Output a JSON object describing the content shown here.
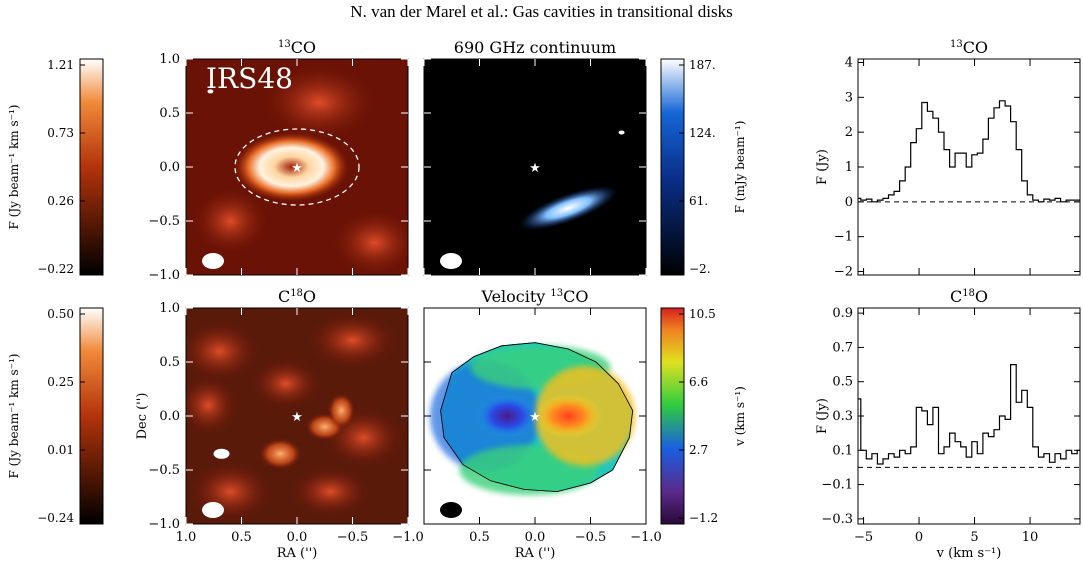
{
  "header": "N. van der Marel et al.: Gas cavities in transitional disks",
  "source_label": "IRS48",
  "colors": {
    "co_low": "#000000",
    "co_mid": "#b3330a",
    "co_high": "#ffffff",
    "cont_low": "#000000",
    "cont_mid": "#1466d6",
    "cont_high": "#ffffff",
    "vel_low": "#5a2a8a",
    "vel_mid": "#2ecc40",
    "vel_high": "#d62020"
  },
  "chart_data": [
    {
      "id": "colorbar-13co",
      "type": "colorbar",
      "ylabel": "F (Jy beam⁻¹ km s⁻¹)",
      "ticks": [
        "1.21",
        "0.73",
        "0.26",
        "-0.22"
      ],
      "range": [
        -0.22,
        1.21
      ]
    },
    {
      "id": "map-13co",
      "type": "heatmap",
      "title_pre": "13",
      "title_main": "CO",
      "xlim": [
        1.0,
        -1.0
      ],
      "ylim": [
        -1.0,
        1.0
      ],
      "yticks": [
        "1.0",
        "0.5",
        "0.0",
        "-0.5",
        "-1.0"
      ],
      "xticks": [],
      "annotations": {
        "star": [
          0.0,
          0.0
        ],
        "dashed_ellipse": true,
        "beam": true
      }
    },
    {
      "id": "map-cont",
      "type": "heatmap",
      "title": "690 GHz continuum",
      "xlim": [
        1.0,
        -1.0
      ],
      "ylim": [
        -1.0,
        1.0
      ],
      "annotations": {
        "star": [
          0.0,
          0.0
        ],
        "beam": true
      }
    },
    {
      "id": "colorbar-cont",
      "type": "colorbar",
      "ylabel": "F (mJy beam⁻¹)",
      "ticks": [
        "187.",
        "124.",
        "61.",
        "-2."
      ],
      "range": [
        -2,
        187
      ]
    },
    {
      "id": "spec-13co",
      "type": "line",
      "title_pre": "13",
      "title_main": "CO",
      "ylabel": "F (Jy)",
      "yticks": [
        "4",
        "3",
        "2",
        "1",
        "0",
        "-1",
        "-2"
      ],
      "ylim": [
        -2.1,
        4.1
      ],
      "xlim": [
        -5.5,
        14.5
      ],
      "x": [
        -5.5,
        -5,
        -4.5,
        -4,
        -3.5,
        -3,
        -2.5,
        -2,
        -1.5,
        -1,
        -0.5,
        0,
        0.5,
        1,
        1.5,
        2,
        2.5,
        3,
        3.5,
        4,
        4.5,
        5,
        5.5,
        6,
        6.5,
        7,
        7.5,
        8,
        8.5,
        9,
        9.5,
        10,
        10.5,
        11,
        11.5,
        12,
        12.5,
        13,
        13.5,
        14,
        14.5
      ],
      "y": [
        0.1,
        0.05,
        0.08,
        0.0,
        0.05,
        0.1,
        0.2,
        0.3,
        0.6,
        1.0,
        1.7,
        2.1,
        2.85,
        2.6,
        2.4,
        2.0,
        1.5,
        1.0,
        1.4,
        1.4,
        1.0,
        1.35,
        1.4,
        1.8,
        2.4,
        2.7,
        2.9,
        2.75,
        2.3,
        1.5,
        0.6,
        0.2,
        0.05,
        0.0,
        0.08,
        0.05,
        0.1,
        0.0,
        0.05,
        0.05,
        0.05
      ]
    },
    {
      "id": "colorbar-c18o",
      "type": "colorbar",
      "ylabel": "F (Jy beam⁻¹ km s⁻¹)",
      "ticks": [
        "0.50",
        "0.25",
        "0.01",
        "-0.24"
      ],
      "range": [
        -0.24,
        0.5
      ]
    },
    {
      "id": "map-c18o",
      "type": "heatmap",
      "title_pre": "C",
      "title_sup": "18",
      "title_main": "O",
      "xlabel": "RA ('')",
      "ylabel": "Dec ('')",
      "xlim": [
        1.0,
        -1.0
      ],
      "ylim": [
        -1.0,
        1.0
      ],
      "xticks": [
        "1.0",
        "0.5",
        "0.0",
        "-0.5",
        "-1.0"
      ],
      "yticks": [
        "1.0",
        "0.5",
        "0.0",
        "-0.5",
        "-1.0"
      ],
      "annotations": {
        "star": [
          0.0,
          0.0
        ],
        "beam": true
      }
    },
    {
      "id": "map-vel",
      "type": "heatmap",
      "title_pre": "Velocity ",
      "title_sup": "13",
      "title_main": "CO",
      "xlabel": "RA ('')",
      "xlim": [
        1.0,
        -1.0
      ],
      "ylim": [
        -1.0,
        1.0
      ],
      "xticks": [
        "0.5",
        "0.0",
        "-0.5",
        "-1.0"
      ],
      "annotations": {
        "star": [
          0.0,
          0.0
        ],
        "beam": true
      }
    },
    {
      "id": "colorbar-vel",
      "type": "colorbar",
      "ylabel": "v (km s⁻¹)",
      "ticks": [
        "10.5",
        "6.6",
        "2.7",
        "-1.2"
      ],
      "range": [
        -1.2,
        10.5
      ]
    },
    {
      "id": "spec-c18o",
      "type": "line",
      "title_pre": "C",
      "title_sup": "18",
      "title_main": "O",
      "xlabel": "v (km s⁻¹)",
      "ylabel": "F (Jy)",
      "xticks": [
        "-5",
        "0",
        "5",
        "10"
      ],
      "yticks": [
        "0.9",
        "0.7",
        "0.5",
        "0.3",
        "0.1",
        "-0.1",
        "-0.3"
      ],
      "ylim": [
        -0.33,
        0.93
      ],
      "xlim": [
        -5.5,
        14.5
      ],
      "x": [
        -5.5,
        -5,
        -4.5,
        -4,
        -3.5,
        -3,
        -2.5,
        -2,
        -1.5,
        -1,
        -0.5,
        0,
        0.5,
        1,
        1.5,
        2,
        2.5,
        3,
        3.5,
        4,
        4.5,
        5,
        5.5,
        6,
        6.5,
        7,
        7.5,
        8,
        8.5,
        9,
        9.5,
        10,
        10.5,
        11,
        11.5,
        12,
        12.5,
        13,
        13.5,
        14,
        14.5
      ],
      "y": [
        0.4,
        0.1,
        0.05,
        0.08,
        0.02,
        0.05,
        0.08,
        0.06,
        0.1,
        0.08,
        0.12,
        0.35,
        0.33,
        0.25,
        0.35,
        0.08,
        0.12,
        0.2,
        0.15,
        0.12,
        0.06,
        0.15,
        0.08,
        0.2,
        0.18,
        0.22,
        0.3,
        0.28,
        0.6,
        0.38,
        0.45,
        0.35,
        0.12,
        0.06,
        0.08,
        0.03,
        0.08,
        0.05,
        0.1,
        0.08,
        0.1
      ]
    }
  ]
}
